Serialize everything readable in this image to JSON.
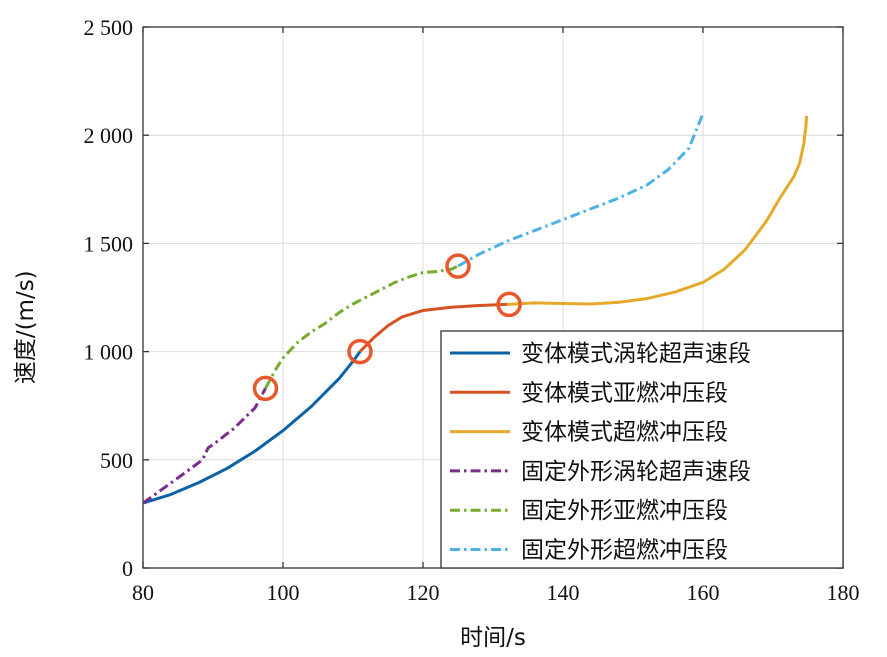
{
  "chart_data": {
    "type": "line",
    "title": "",
    "xlabel": "时间/s",
    "ylabel": "速度/(m/s)",
    "xlim": [
      80,
      180
    ],
    "ylim": [
      0,
      2500
    ],
    "xticks": [
      80,
      100,
      120,
      140,
      160,
      180
    ],
    "yticks": [
      0,
      500,
      1000,
      1500,
      2000,
      2500
    ],
    "xtick_labels": [
      "80",
      "100",
      "120",
      "140",
      "160",
      "180"
    ],
    "ytick_labels": [
      "0",
      "500",
      "1 000",
      "1 500",
      "2 000",
      "2 500"
    ],
    "grid": true,
    "legend_position": "lower-right",
    "series": [
      {
        "name": "变体模式涡轮超声速段",
        "color": "#0a62a8",
        "dash": "solid",
        "points": [
          [
            80,
            300
          ],
          [
            84,
            340
          ],
          [
            88,
            395
          ],
          [
            92,
            460
          ],
          [
            96,
            540
          ],
          [
            100,
            635
          ],
          [
            104,
            745
          ],
          [
            108,
            875
          ],
          [
            110,
            955
          ],
          [
            111,
            1000
          ]
        ]
      },
      {
        "name": "变体模式亚燃冲压段",
        "color": "#d65222",
        "dash": "solid",
        "points": [
          [
            111,
            1000
          ],
          [
            113,
            1065
          ],
          [
            115,
            1120
          ],
          [
            117,
            1160
          ],
          [
            120,
            1190
          ],
          [
            124,
            1205
          ],
          [
            128,
            1213
          ],
          [
            132,
            1218
          ]
        ]
      },
      {
        "name": "变体模式超燃冲压段",
        "color": "#e6a92b",
        "dash": "solid",
        "points": [
          [
            132,
            1218
          ],
          [
            136,
            1225
          ],
          [
            140,
            1222
          ],
          [
            144,
            1220
          ],
          [
            148,
            1228
          ],
          [
            152,
            1245
          ],
          [
            156,
            1275
          ],
          [
            160,
            1320
          ],
          [
            163,
            1380
          ],
          [
            166,
            1470
          ],
          [
            169,
            1600
          ],
          [
            171,
            1710
          ],
          [
            173,
            1810
          ],
          [
            173.8,
            1870
          ],
          [
            174.4,
            1960
          ],
          [
            174.7,
            2040
          ],
          [
            174.8,
            2090
          ]
        ]
      },
      {
        "name": "固定外形涡轮超声速段",
        "color": "#7b2d8c",
        "dash": "dashdot",
        "points": [
          [
            80,
            300
          ],
          [
            83,
            370
          ],
          [
            86,
            440
          ],
          [
            88.5,
            500
          ],
          [
            89.3,
            555
          ],
          [
            90,
            570
          ],
          [
            93,
            645
          ],
          [
            96,
            740
          ],
          [
            97.5,
            830
          ]
        ]
      },
      {
        "name": "固定外形亚燃冲压段",
        "color": "#77ac2f",
        "dash": "dashdot",
        "points": [
          [
            97.5,
            830
          ],
          [
            99,
            920
          ],
          [
            100,
            970
          ],
          [
            102,
            1040
          ],
          [
            104,
            1090
          ],
          [
            106,
            1130
          ],
          [
            108,
            1180
          ],
          [
            110,
            1220
          ],
          [
            113,
            1270
          ],
          [
            116,
            1320
          ],
          [
            118,
            1345
          ],
          [
            120,
            1365
          ],
          [
            122,
            1370
          ],
          [
            124,
            1380
          ],
          [
            125,
            1395
          ]
        ]
      },
      {
        "name": "固定外形超燃冲压段",
        "color": "#4db3e5",
        "dash": "dashdot",
        "points": [
          [
            125,
            1395
          ],
          [
            128,
            1450
          ],
          [
            132,
            1510
          ],
          [
            136,
            1560
          ],
          [
            140,
            1610
          ],
          [
            144,
            1660
          ],
          [
            148,
            1710
          ],
          [
            152,
            1770
          ],
          [
            155,
            1840
          ],
          [
            158,
            1940
          ],
          [
            160,
            2100
          ]
        ]
      }
    ],
    "markers": [
      {
        "label": "transition",
        "x": 97.5,
        "y": 830
      },
      {
        "label": "transition",
        "x": 111,
        "y": 1000
      },
      {
        "label": "transition",
        "x": 125,
        "y": 1395
      },
      {
        "label": "transition",
        "x": 132.3,
        "y": 1218
      }
    ],
    "marker_color": "#e8582b"
  }
}
